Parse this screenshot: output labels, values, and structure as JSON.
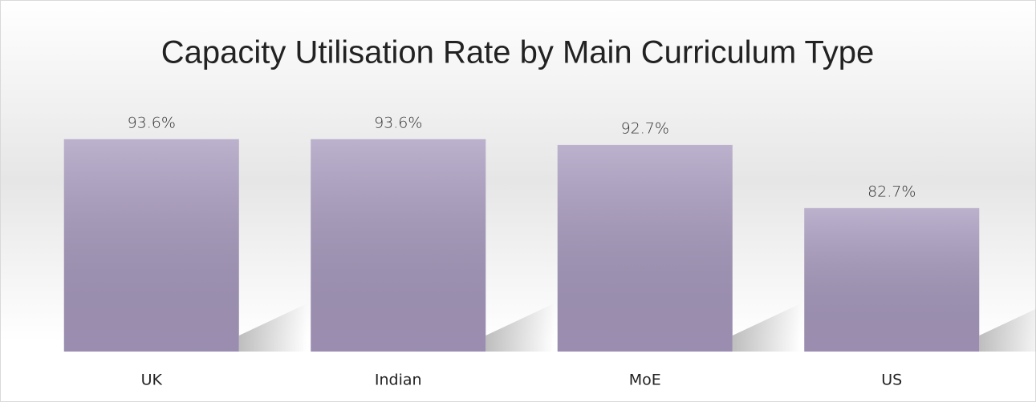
{
  "chart_data": {
    "type": "bar",
    "title": "Capacity Utilisation Rate by Main Curriculum Type",
    "categories": [
      "UK",
      "Indian",
      "MoE",
      "US"
    ],
    "values": [
      93.6,
      93.6,
      92.7,
      82.7
    ],
    "value_labels": [
      "93.6%",
      "93.6%",
      "92.7%",
      "82.7%"
    ],
    "color": "#a698bd",
    "ylim": [
      60,
      97
    ]
  }
}
